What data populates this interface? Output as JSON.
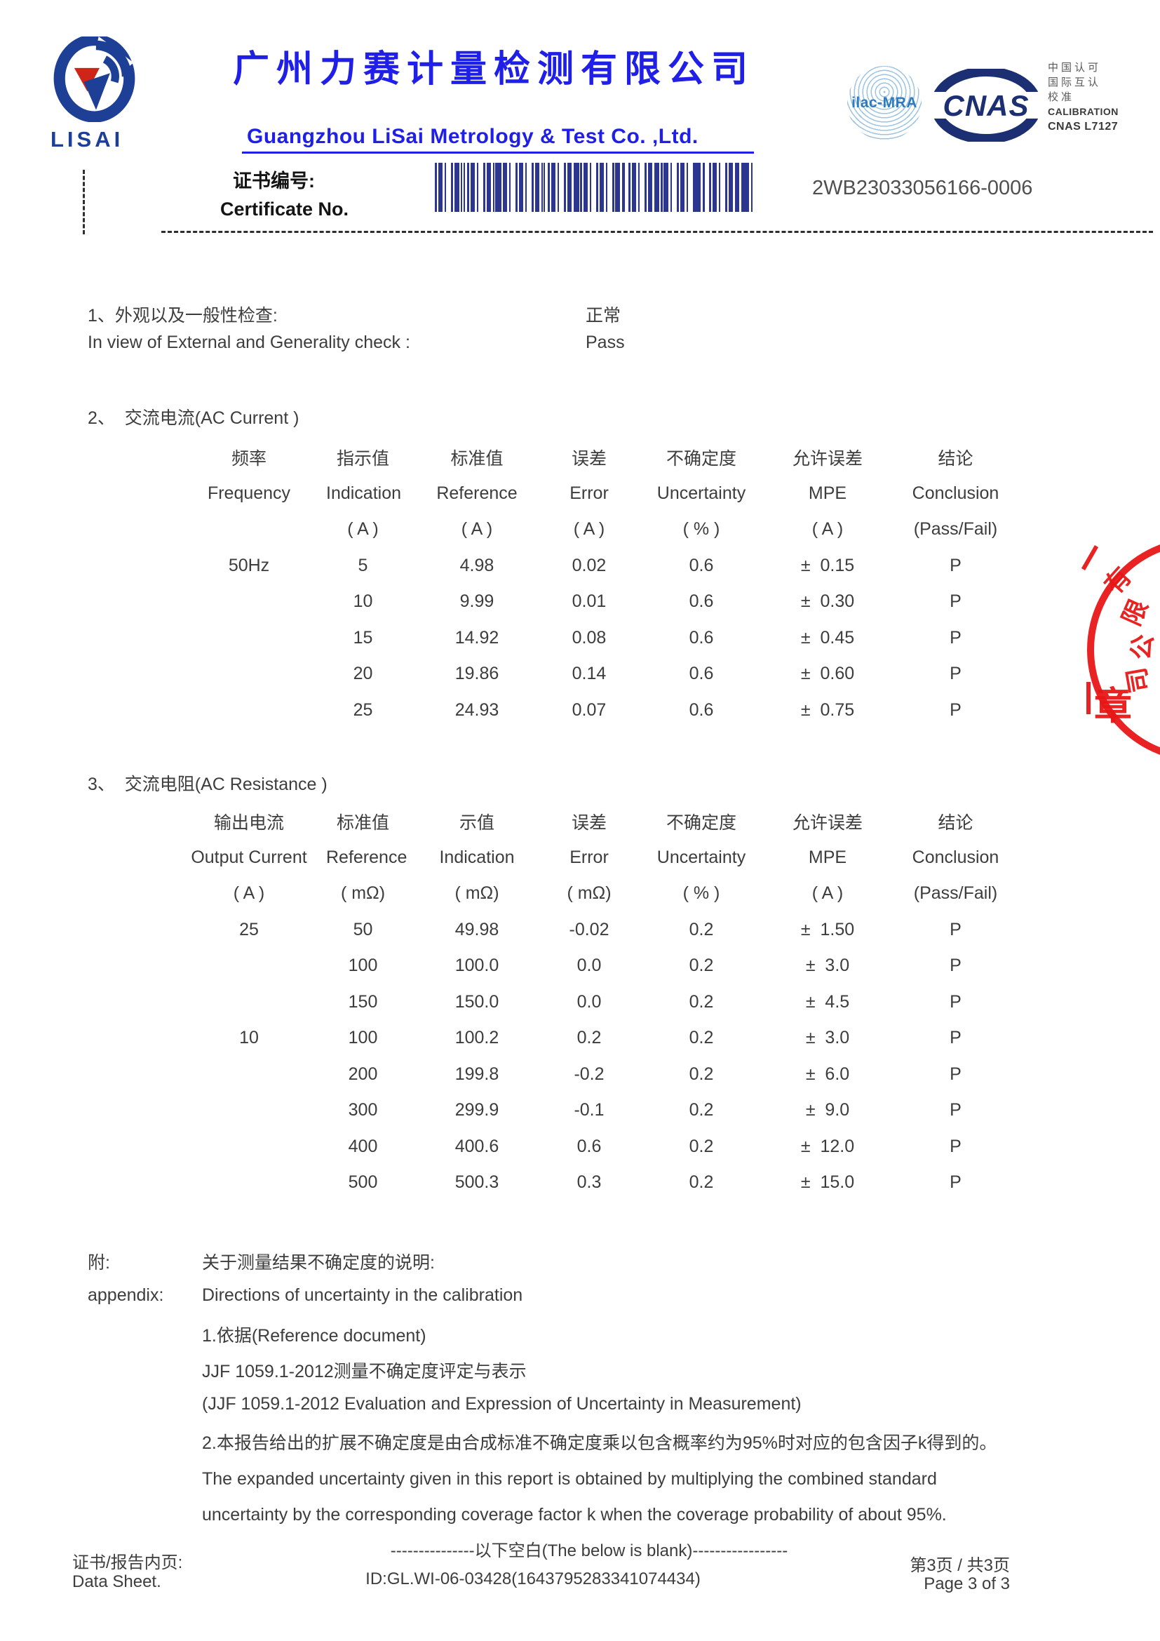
{
  "header": {
    "logo_text": "LISAI",
    "company_name_cn": "广州力赛计量检测有限公司",
    "company_name_en": "Guangzhou LiSai Metrology & Test Co. ,Ltd.",
    "accreditation": {
      "ilac_label": "ilac-MRA",
      "cnas_label": "CNAS",
      "cn_line1": "中国认可",
      "cn_line2": "国际互认",
      "cn_line3": "校准",
      "calibration_label": "CALIBRATION",
      "cnas_number": "CNAS L7127"
    },
    "certificate": {
      "label_cn": "证书编号:",
      "label_en": "Certificate No.",
      "number": "2WB23033056166-0006"
    }
  },
  "section_check": {
    "line_cn": "1、外观以及一般性检查:",
    "line_en": "In view of External and Generality check :",
    "result_cn": "正常",
    "result_en": "Pass"
  },
  "section_ac_current": {
    "title": "2、  交流电流(AC Current )",
    "header_rows": [
      [
        "频率",
        "指示值",
        "标准值",
        "误差",
        "不确定度",
        "允许误差",
        "结论"
      ],
      [
        "Frequency",
        "Indication",
        "Reference",
        "Error",
        "Uncertainty",
        "MPE",
        "Conclusion"
      ],
      [
        "",
        "( A )",
        "( A )",
        "( A )",
        "( % )",
        "( A )",
        "(Pass/Fail)"
      ]
    ],
    "rows": [
      [
        "50Hz",
        "5",
        "4.98",
        "0.02",
        "0.6",
        "±  0.15",
        "P"
      ],
      [
        "",
        "10",
        "9.99",
        "0.01",
        "0.6",
        "±  0.30",
        "P"
      ],
      [
        "",
        "15",
        "14.92",
        "0.08",
        "0.6",
        "±  0.45",
        "P"
      ],
      [
        "",
        "20",
        "19.86",
        "0.14",
        "0.6",
        "±  0.60",
        "P"
      ],
      [
        "",
        "25",
        "24.93",
        "0.07",
        "0.6",
        "±  0.75",
        "P"
      ]
    ]
  },
  "section_ac_resistance": {
    "title": "3、  交流电阻(AC Resistance )",
    "header_rows": [
      [
        "输出电流",
        "标准值",
        "示值",
        "误差",
        "不确定度",
        "允许误差",
        "结论"
      ],
      [
        "Output Current",
        "Reference",
        "Indication",
        "Error",
        "Uncertainty",
        "MPE",
        "Conclusion"
      ],
      [
        "( A )",
        "( mΩ)",
        "( mΩ)",
        "( mΩ)",
        "( % )",
        "( A )",
        "(Pass/Fail)"
      ]
    ],
    "rows": [
      [
        "25",
        "50",
        "49.98",
        "-0.02",
        "0.2",
        "±  1.50",
        "P"
      ],
      [
        "",
        "100",
        "100.0",
        "0.0",
        "0.2",
        "±  3.0",
        "P"
      ],
      [
        "",
        "150",
        "150.0",
        "0.0",
        "0.2",
        "±  4.5",
        "P"
      ],
      [
        "10",
        "100",
        "100.2",
        "0.2",
        "0.2",
        "±  3.0",
        "P"
      ],
      [
        "",
        "200",
        "199.8",
        "-0.2",
        "0.2",
        "±  6.0",
        "P"
      ],
      [
        "",
        "300",
        "299.9",
        "-0.1",
        "0.2",
        "±  9.0",
        "P"
      ],
      [
        "",
        "400",
        "400.6",
        "0.6",
        "0.2",
        "±  12.0",
        "P"
      ],
      [
        "",
        "500",
        "500.3",
        "0.3",
        "0.2",
        "±  15.0",
        "P"
      ]
    ]
  },
  "appendix": {
    "label_cn": "附:",
    "label_en": "appendix:",
    "line1_cn": "关于测量结果不确定度的说明:",
    "line1_en": "Directions of uncertainty in the calibration",
    "lines": [
      "1.依据(Reference document)",
      "JJF 1059.1-2012测量不确定度评定与表示",
      "(JJF 1059.1-2012 Evaluation and Expression of Uncertainty in Measurement)",
      "2.本报告给出的扩展不确定度是由合成标准不确定度乘以包含概率约为95%时对应的包含因子k得到的。",
      "The expanded uncertainty given in this report is obtained by multiplying the combined standard",
      "uncertainty by the corresponding coverage factor k when the coverage probability of about 95%."
    ]
  },
  "footer": {
    "blank_line": "---------------以下空白(The below is blank)-----------------",
    "doc_id": "ID:GL.WI-06-03428(1643795283341074434)",
    "left_cn": "证书/报告内页:",
    "left_en": "Data Sheet.",
    "page_cn": "第3页 / 共3页",
    "page_en": "Page 3 of 3"
  },
  "stamp": {
    "char_1": "有",
    "char_2": "限",
    "char_3": "公",
    "char_4": "司",
    "char_bottom": "章"
  }
}
